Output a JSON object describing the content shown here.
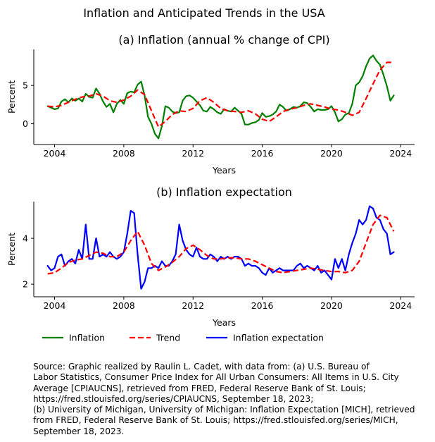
{
  "suptitle": "Inflation and Anticipated Trends in the USA",
  "legend": {
    "placement": "bottom-left",
    "items": [
      {
        "label": "Inflation",
        "color": "#008000",
        "style": "solid"
      },
      {
        "label": "Trend",
        "color": "#ff0000",
        "style": "dashed"
      },
      {
        "label": "Inflation expectation",
        "color": "#0000ff",
        "style": "solid"
      }
    ]
  },
  "source_lines": [
    "Source: Graphic realized by Raulin L. Cadet, with data from: (a) U.S. Bureau of",
    "Labor Statistics, Consumer Price Index for All Urban Consumers: All Items in U.S. City",
    "Average [CPIAUCNS], retrieved from FRED, Federal Reserve Bank of St. Louis;",
    "https://fred.stlouisfed.org/series/CPIAUCNS, September 18, 2023;",
    "(b) University of Michigan, University of Michigan: Inflation Expectation [MICH], retrieved",
    "from FRED, Federal Reserve Bank of St. Louis; https://fred.stlouisfed.org/series/MICH,",
    "September 18, 2023."
  ],
  "chart_data": [
    {
      "type": "line",
      "title": "(a) Inflation (annual % change of CPI)",
      "xlabel": "Years",
      "ylabel": "Percent",
      "xlim": [
        2002.8,
        2024.8
      ],
      "ylim": [
        -2.7,
        9.7
      ],
      "xticks": [
        2004,
        2008,
        2012,
        2016,
        2020,
        2024
      ],
      "yticks": [
        0,
        5
      ],
      "grid": false,
      "series": [
        {
          "name": "Inflation",
          "color": "#008000",
          "dash": false,
          "x": [
            2003.6,
            2003.8,
            2004.0,
            2004.2,
            2004.4,
            2004.6,
            2004.8,
            2005.0,
            2005.2,
            2005.4,
            2005.6,
            2005.8,
            2006.0,
            2006.2,
            2006.4,
            2006.6,
            2006.8,
            2007.0,
            2007.2,
            2007.4,
            2007.6,
            2007.8,
            2008.0,
            2008.2,
            2008.4,
            2008.6,
            2008.8,
            2009.0,
            2009.2,
            2009.4,
            2009.6,
            2009.8,
            2010.0,
            2010.2,
            2010.4,
            2010.6,
            2010.8,
            2011.0,
            2011.2,
            2011.4,
            2011.6,
            2011.8,
            2012.0,
            2012.2,
            2012.4,
            2012.6,
            2012.8,
            2013.0,
            2013.2,
            2013.4,
            2013.6,
            2013.8,
            2014.0,
            2014.2,
            2014.4,
            2014.6,
            2014.8,
            2015.0,
            2015.2,
            2015.4,
            2015.6,
            2015.8,
            2016.0,
            2016.2,
            2016.4,
            2016.6,
            2016.8,
            2017.0,
            2017.2,
            2017.4,
            2017.6,
            2017.8,
            2018.0,
            2018.2,
            2018.4,
            2018.6,
            2018.8,
            2019.0,
            2019.2,
            2019.4,
            2019.6,
            2019.8,
            2020.0,
            2020.2,
            2020.4,
            2020.6,
            2020.8,
            2021.0,
            2021.2,
            2021.4,
            2021.6,
            2021.8,
            2022.0,
            2022.2,
            2022.4,
            2022.6,
            2022.8,
            2023.0,
            2023.2,
            2023.4,
            2023.6
          ],
          "y": [
            2.3,
            2.1,
            1.9,
            2.0,
            2.9,
            3.2,
            2.8,
            3.3,
            3.0,
            3.3,
            2.9,
            3.9,
            3.5,
            3.4,
            4.6,
            3.9,
            2.9,
            2.2,
            2.6,
            1.5,
            2.6,
            3.1,
            2.6,
            4.0,
            4.2,
            4.1,
            5.1,
            5.5,
            3.7,
            0.9,
            0.0,
            -1.3,
            -1.9,
            -0.3,
            2.3,
            2.1,
            1.6,
            1.4,
            1.5,
            3.0,
            3.6,
            3.7,
            3.4,
            2.9,
            2.4,
            1.7,
            1.6,
            2.2,
            1.9,
            1.5,
            1.3,
            1.9,
            1.7,
            1.6,
            2.1,
            1.7,
            1.3,
            -0.1,
            -0.1,
            0.1,
            0.2,
            0.5,
            1.4,
            0.9,
            1.0,
            1.2,
            1.6,
            2.5,
            2.2,
            1.7,
            1.9,
            2.2,
            2.1,
            2.3,
            2.8,
            2.7,
            2.2,
            1.6,
            1.9,
            1.8,
            1.8,
            1.9,
            2.3,
            1.5,
            0.3,
            0.6,
            1.2,
            1.4,
            2.6,
            5.0,
            5.4,
            6.2,
            7.5,
            8.5,
            8.9,
            8.2,
            7.7,
            6.4,
            4.9,
            3.0,
            3.7
          ]
        },
        {
          "name": "Trend",
          "color": "#ff0000",
          "dash": true,
          "x": [
            2003.6,
            2004.0,
            2004.4,
            2004.8,
            2005.2,
            2005.6,
            2006.0,
            2006.4,
            2006.8,
            2007.2,
            2007.6,
            2008.0,
            2008.4,
            2008.8,
            2009.2,
            2009.6,
            2010.0,
            2010.4,
            2010.8,
            2011.2,
            2011.6,
            2012.0,
            2012.4,
            2012.8,
            2013.2,
            2013.6,
            2014.0,
            2014.4,
            2014.8,
            2015.2,
            2015.6,
            2016.0,
            2016.4,
            2016.8,
            2017.2,
            2017.6,
            2018.0,
            2018.4,
            2018.8,
            2019.2,
            2019.6,
            2020.0,
            2020.4,
            2020.8,
            2021.2,
            2021.6,
            2022.0,
            2022.4,
            2022.8,
            2023.2,
            2023.6
          ],
          "y": [
            2.3,
            2.2,
            2.4,
            2.8,
            3.2,
            3.5,
            3.6,
            3.9,
            3.6,
            3.0,
            2.8,
            3.1,
            3.6,
            4.4,
            3.8,
            1.7,
            -0.4,
            0.3,
            1.2,
            1.7,
            1.6,
            2.0,
            3.0,
            3.4,
            2.8,
            2.0,
            1.7,
            1.6,
            1.5,
            1.7,
            1.3,
            0.6,
            0.3,
            0.9,
            1.6,
            1.9,
            2.1,
            2.4,
            2.6,
            2.4,
            2.2,
            1.9,
            1.8,
            1.5,
            1.1,
            1.5,
            3.3,
            5.2,
            7.0,
            8.0,
            8.0
          ]
        }
      ]
    },
    {
      "type": "line",
      "title": "(b) Inflation expectation",
      "xlabel": "Years",
      "ylabel": "Percent",
      "xlim": [
        2002.8,
        2024.8
      ],
      "ylim": [
        1.45,
        5.6
      ],
      "xticks": [
        2004,
        2008,
        2012,
        2016,
        2020,
        2024
      ],
      "yticks": [
        2,
        4
      ],
      "grid": false,
      "series": [
        {
          "name": "Inflation expectation",
          "color": "#0000ff",
          "dash": false,
          "x": [
            2003.6,
            2003.8,
            2004.0,
            2004.2,
            2004.4,
            2004.6,
            2004.8,
            2005.0,
            2005.2,
            2005.4,
            2005.6,
            2005.8,
            2006.0,
            2006.2,
            2006.4,
            2006.6,
            2006.8,
            2007.0,
            2007.2,
            2007.4,
            2007.6,
            2007.8,
            2008.0,
            2008.2,
            2008.4,
            2008.6,
            2008.8,
            2009.0,
            2009.2,
            2009.4,
            2009.6,
            2009.8,
            2010.0,
            2010.2,
            2010.4,
            2010.6,
            2010.8,
            2011.0,
            2011.2,
            2011.4,
            2011.6,
            2011.8,
            2012.0,
            2012.2,
            2012.4,
            2012.6,
            2012.8,
            2013.0,
            2013.2,
            2013.4,
            2013.6,
            2013.8,
            2014.0,
            2014.2,
            2014.4,
            2014.6,
            2014.8,
            2015.0,
            2015.2,
            2015.4,
            2015.6,
            2015.8,
            2016.0,
            2016.2,
            2016.4,
            2016.6,
            2016.8,
            2017.0,
            2017.2,
            2017.4,
            2017.6,
            2017.8,
            2018.0,
            2018.2,
            2018.4,
            2018.6,
            2018.8,
            2019.0,
            2019.2,
            2019.4,
            2019.6,
            2019.8,
            2020.0,
            2020.2,
            2020.4,
            2020.6,
            2020.8,
            2021.0,
            2021.2,
            2021.4,
            2021.6,
            2021.8,
            2022.0,
            2022.2,
            2022.4,
            2022.6,
            2022.8,
            2023.0,
            2023.2,
            2023.4,
            2023.6
          ],
          "y": [
            2.8,
            2.6,
            2.7,
            3.2,
            3.3,
            2.8,
            3.0,
            3.1,
            2.9,
            3.5,
            3.1,
            4.6,
            3.1,
            3.1,
            4.0,
            3.2,
            3.3,
            3.2,
            3.4,
            3.2,
            3.1,
            3.2,
            3.4,
            4.2,
            5.2,
            5.1,
            3.3,
            1.8,
            2.1,
            2.7,
            2.7,
            2.8,
            2.7,
            3.0,
            2.8,
            2.8,
            3.0,
            3.3,
            4.6,
            3.9,
            3.5,
            3.3,
            3.2,
            3.6,
            3.2,
            3.1,
            3.1,
            3.3,
            3.2,
            3.0,
            3.2,
            3.1,
            3.2,
            3.1,
            3.2,
            3.2,
            3.1,
            2.8,
            2.9,
            2.8,
            2.8,
            2.7,
            2.5,
            2.4,
            2.7,
            2.5,
            2.6,
            2.7,
            2.6,
            2.6,
            2.6,
            2.6,
            2.8,
            2.9,
            2.7,
            2.8,
            2.7,
            2.6,
            2.8,
            2.5,
            2.6,
            2.4,
            2.2,
            3.1,
            2.7,
            3.1,
            2.6,
            3.3,
            3.8,
            4.2,
            4.8,
            4.6,
            4.8,
            5.4,
            5.3,
            4.9,
            4.8,
            4.4,
            4.2,
            3.3,
            3.4
          ]
        },
        {
          "name": "Trend",
          "color": "#ff0000",
          "dash": true,
          "x": [
            2003.6,
            2004.0,
            2004.4,
            2004.8,
            2005.2,
            2005.6,
            2006.0,
            2006.4,
            2006.8,
            2007.2,
            2007.6,
            2008.0,
            2008.4,
            2008.8,
            2009.2,
            2009.6,
            2010.0,
            2010.4,
            2010.8,
            2011.2,
            2011.6,
            2012.0,
            2012.4,
            2012.8,
            2013.2,
            2013.6,
            2014.0,
            2014.4,
            2014.8,
            2015.2,
            2015.6,
            2016.0,
            2016.4,
            2016.8,
            2017.2,
            2017.6,
            2018.0,
            2018.4,
            2018.8,
            2019.2,
            2019.6,
            2020.0,
            2020.4,
            2020.8,
            2021.2,
            2021.6,
            2022.0,
            2022.4,
            2022.8,
            2023.2,
            2023.6
          ],
          "y": [
            2.45,
            2.5,
            2.7,
            2.95,
            3.05,
            3.1,
            3.25,
            3.4,
            3.35,
            3.2,
            3.2,
            3.4,
            3.9,
            4.3,
            3.7,
            2.9,
            2.6,
            2.75,
            2.95,
            3.2,
            3.55,
            3.7,
            3.5,
            3.25,
            3.1,
            3.1,
            3.15,
            3.15,
            3.1,
            3.1,
            3.0,
            2.85,
            2.7,
            2.55,
            2.5,
            2.55,
            2.6,
            2.65,
            2.7,
            2.65,
            2.6,
            2.55,
            2.55,
            2.5,
            2.6,
            3.0,
            3.8,
            4.6,
            5.0,
            4.9,
            4.3
          ]
        }
      ]
    }
  ]
}
